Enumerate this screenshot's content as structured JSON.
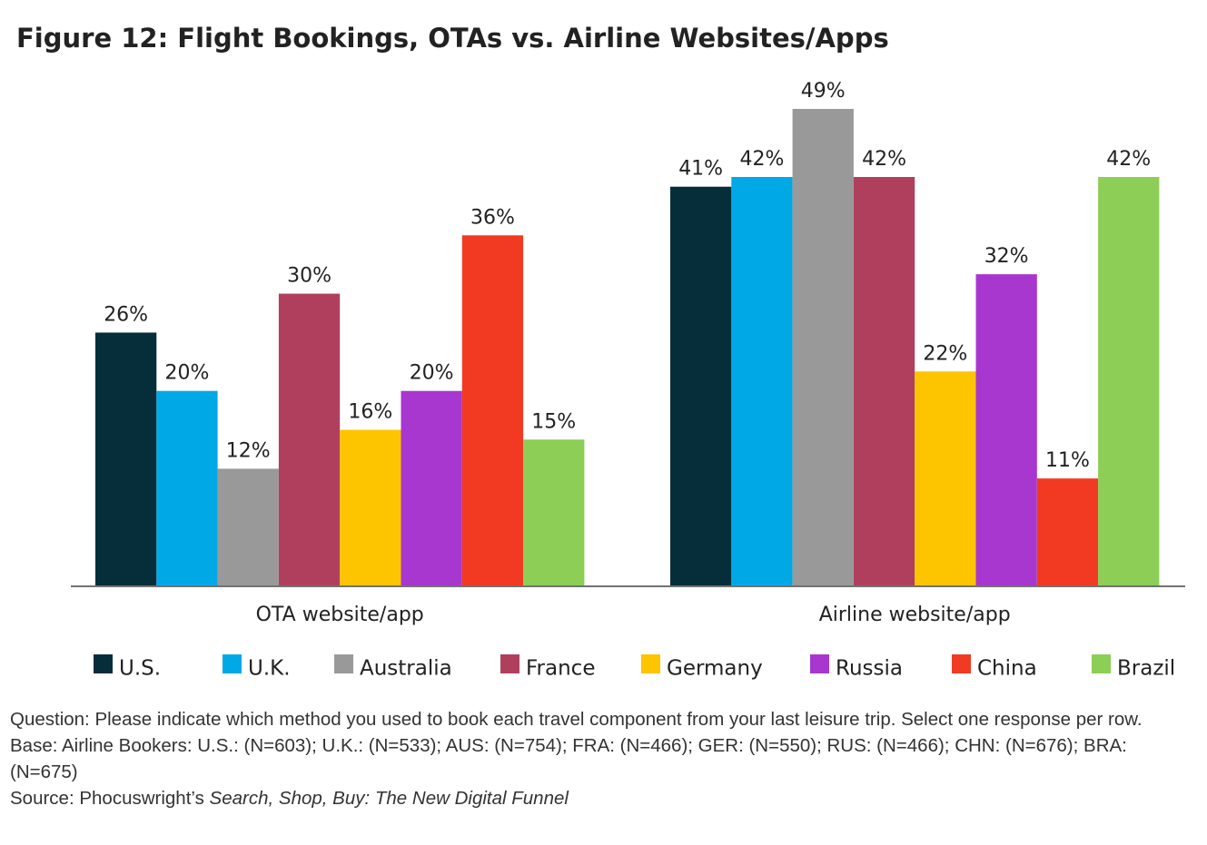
{
  "chart_data": {
    "type": "bar",
    "title": "Figure 12: Flight Bookings, OTAs vs. Airline Websites/Apps",
    "categories": [
      "OTA website/app",
      "Airline website/app"
    ],
    "series": [
      {
        "name": "U.S.",
        "color": "#062e3a",
        "values": [
          26,
          41
        ],
        "value_labels": [
          "26%",
          "41%"
        ]
      },
      {
        "name": "U.K.",
        "color": "#00a9e6",
        "values": [
          20,
          42
        ],
        "value_labels": [
          "20%",
          "42%"
        ]
      },
      {
        "name": "Australia",
        "color": "#999999",
        "values": [
          12,
          49
        ],
        "value_labels": [
          "12%",
          "49%"
        ]
      },
      {
        "name": "France",
        "color": "#b03f5e",
        "values": [
          30,
          42
        ],
        "value_labels": [
          "30%",
          "42%"
        ]
      },
      {
        "name": "Germany",
        "color": "#fdc400",
        "values": [
          16,
          22
        ],
        "value_labels": [
          "16%",
          "22%"
        ]
      },
      {
        "name": "Russia",
        "color": "#a737cf",
        "values": [
          20,
          32
        ],
        "value_labels": [
          "20%",
          "32%"
        ]
      },
      {
        "name": "China",
        "color": "#f23a23",
        "values": [
          36,
          11
        ],
        "value_labels": [
          "36%",
          "11%"
        ]
      },
      {
        "name": "Brazil",
        "color": "#8cce56",
        "values": [
          15,
          42
        ],
        "value_labels": [
          "15%",
          "42%"
        ]
      }
    ],
    "notes": {
      "question": "Question: Please indicate which method you used to book each travel component from your last leisure trip. Select one response per row.",
      "base": "Base: Airline Bookers: U.S.: (N=603); U.K.: (N=533); AUS: (N=754); FRA: (N=466); GER: (N=550); RUS: (N=466); CHN: (N=676); BRA: (N=675)",
      "source_prefix": "Source: Phocuswright’s",
      "source_title": "Search, Shop, Buy: The New Digital Funnel"
    }
  }
}
